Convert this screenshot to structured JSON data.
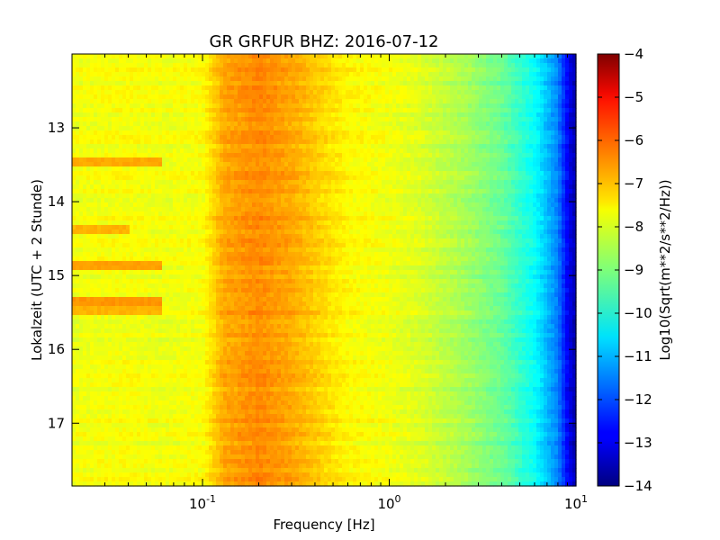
{
  "chart_data": {
    "type": "heatmap",
    "title": "GR GRFUR BHZ: 2016-07-12",
    "xlabel": "Frequency [Hz]",
    "ylabel": "Lokalzeit (UTC + 2 Stunde)",
    "x_scale": "log",
    "xlim": [
      0.02,
      10
    ],
    "ylim": [
      17.85,
      12.0
    ],
    "x_ticks": [
      {
        "base": "10",
        "exp": "-1",
        "value": 0.1
      },
      {
        "base": "10",
        "exp": "0",
        "value": 1
      },
      {
        "base": "10",
        "exp": "1",
        "value": 10
      }
    ],
    "y_ticks": [
      13,
      14,
      15,
      16,
      17
    ],
    "y_tick_labels": [
      "13",
      "14",
      "15",
      "16",
      "17"
    ],
    "colorbar": {
      "label": "Log10(Sqrt(m**2/s**2/Hz))",
      "range": [
        -14,
        -4
      ],
      "ticks": [
        -4,
        -5,
        -6,
        -7,
        -8,
        -9,
        -10,
        -11,
        -12,
        -13,
        -14
      ],
      "tick_labels": [
        "−4",
        "−5",
        "−6",
        "−7",
        "−8",
        "−9",
        "−10",
        "−11",
        "−12",
        "−13",
        "−14"
      ],
      "colormap": "jet"
    },
    "spectrum_profile": {
      "frequency_hz": [
        0.02,
        0.04,
        0.06,
        0.1,
        0.13,
        0.2,
        0.3,
        0.45,
        0.6,
        1.0,
        1.5,
        2.5,
        4.0,
        6.0,
        8.0,
        9.0,
        10.0
      ],
      "log10_amplitude": [
        -7.9,
        -7.8,
        -7.9,
        -7.8,
        -6.9,
        -6.6,
        -6.9,
        -7.4,
        -7.7,
        -7.9,
        -8.1,
        -8.6,
        -9.2,
        -10.2,
        -11.5,
        -12.8,
        -13.6
      ]
    },
    "low_frequency_excursions": [
      {
        "time": 13.45,
        "to_freq_hz": 0.06,
        "log10_amplitude": -6.9
      },
      {
        "time": 14.4,
        "to_freq_hz": 0.04,
        "log10_amplitude": -7.0
      },
      {
        "time": 14.85,
        "to_freq_hz": 0.06,
        "log10_amplitude": -6.8
      },
      {
        "time": 15.35,
        "to_freq_hz": 0.06,
        "log10_amplitude": -6.7
      },
      {
        "time": 15.5,
        "to_freq_hz": 0.06,
        "log10_amplitude": -7.0
      }
    ],
    "grid": false
  }
}
